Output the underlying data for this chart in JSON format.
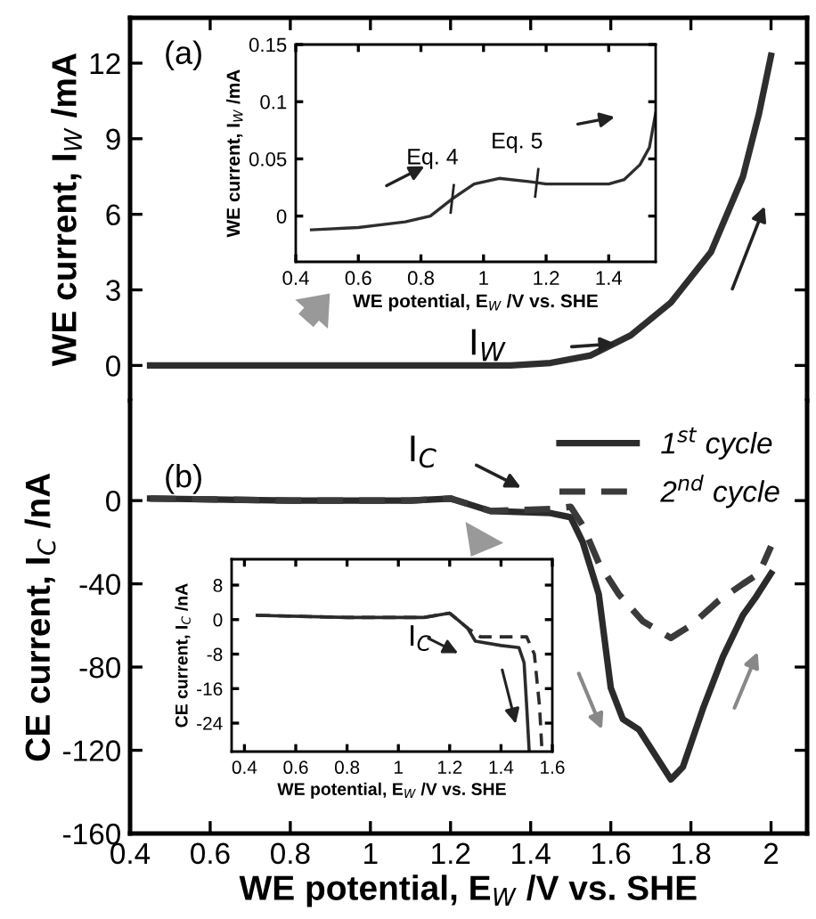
{
  "chart_data": [
    {
      "type": "line",
      "ylabel": "WE current, I$_{W}$ /mA",
      "xlim": [
        0.4,
        2.09
      ],
      "ylim": [
        -1.4,
        13.8
      ],
      "xticks": [
        0.4,
        0.6,
        0.8,
        1,
        1.2,
        1.4,
        1.6,
        1.8,
        2
      ],
      "yticks": [
        0,
        3,
        6,
        9,
        12
      ],
      "tick_labels": "y",
      "legend": false,
      "grid": false,
      "line_style": "solid",
      "marker": "none",
      "annotations": [
        "(a)",
        "I$_{W}$"
      ],
      "series": [
        {
          "color": "#2e2e2e",
          "x": [
            0.45,
            0.8,
            1.2,
            1.35,
            1.45,
            1.55,
            1.65,
            1.75,
            1.85,
            1.93,
            1.97,
            2.0
          ],
          "values": [
            0,
            0,
            0,
            0,
            0.1,
            0.4,
            1.2,
            2.5,
            4.5,
            7.5,
            10,
            12.3
          ]
        }
      ]
    },
    {
      "type": "line",
      "xlabel": "WE potential, E$_{W}$ /V vs. SHE",
      "ylabel": "WE current, I$_{W}$ /mA",
      "xlim": [
        0.4,
        1.55
      ],
      "ylim": [
        -0.04,
        0.15
      ],
      "xticks": [
        0.4,
        0.6,
        0.8,
        1,
        1.2,
        1.4
      ],
      "yticks": [
        0,
        0.05,
        0.1,
        0.15
      ],
      "legend": false,
      "grid": false,
      "line_style": "solid",
      "marker": "none",
      "annotations": [
        {
          "text": "Eq. 4",
          "x": 0.9,
          "y": 0.015
        },
        {
          "text": "Eq. 5",
          "x": 1.17,
          "y": 0.029
        }
      ],
      "series": [
        {
          "color": "#2e2e2e",
          "x": [
            0.45,
            0.6,
            0.75,
            0.83,
            0.9,
            0.97,
            1.05,
            1.15,
            1.2,
            1.4,
            1.45,
            1.5,
            1.53,
            1.55
          ],
          "values": [
            -0.012,
            -0.01,
            -0.005,
            0,
            0.015,
            0.028,
            0.033,
            0.03,
            0.028,
            0.028,
            0.032,
            0.045,
            0.06,
            0.09
          ]
        }
      ]
    },
    {
      "type": "line",
      "xlabel": "WE potential, E$_{W}$ /V vs. SHE",
      "ylabel": "CE current, I$_{C}$ /nA",
      "xlim": [
        0.4,
        2.09
      ],
      "ylim": [
        -160,
        48
      ],
      "xticks": [
        0.4,
        0.6,
        0.8,
        1,
        1.2,
        1.4,
        1.6,
        1.8,
        2
      ],
      "yticks": [
        -160,
        -120,
        -80,
        -40,
        0
      ],
      "legend": "top right",
      "grid": false,
      "marker": "none",
      "annotations": [
        "(b)",
        "I$_{C}$"
      ],
      "series": [
        {
          "name": "1$^{st}$ cycle",
          "color": "#2b2b2b",
          "line_style": "solid",
          "x": [
            0.45,
            0.8,
            1.1,
            1.2,
            1.3,
            1.45,
            1.5,
            1.53,
            1.57,
            1.6,
            1.63,
            1.67,
            1.72,
            1.75,
            1.78,
            1.83,
            1.88,
            1.93,
            1.96,
            2.0
          ],
          "values": [
            1,
            0,
            0,
            1,
            -5,
            -6,
            -8,
            -20,
            -45,
            -90,
            -105,
            -110,
            -125,
            -134,
            -128,
            -100,
            -75,
            -55,
            -47,
            -35
          ]
        },
        {
          "name": "2$^{nd}$ cycle",
          "color": "#3a3a3a",
          "line_style": "dashed",
          "x": [
            0.45,
            0.8,
            1.1,
            1.2,
            1.3,
            1.45,
            1.5,
            1.53,
            1.57,
            1.62,
            1.68,
            1.75,
            1.8,
            1.87,
            1.93,
            1.97,
            2.0
          ],
          "values": [
            1,
            0,
            0,
            1,
            -5,
            -4,
            -3,
            -12,
            -30,
            -45,
            -58,
            -66,
            -60,
            -48,
            -40,
            -35,
            -22
          ]
        }
      ]
    },
    {
      "type": "line",
      "xlabel": "WE potential, E$_{W}$ /V vs. SHE",
      "ylabel": "CE current, I$_{C}$ /nA",
      "xlim": [
        0.35,
        1.6
      ],
      "ylim": [
        -30.6,
        14
      ],
      "xticks": [
        0.4,
        0.6,
        0.8,
        1,
        1.2,
        1.4,
        1.6
      ],
      "yticks": [
        -24,
        -16,
        -8,
        0,
        8
      ],
      "legend": false,
      "grid": false,
      "marker": "none",
      "annotations": [
        "I$_{C}$"
      ],
      "series": [
        {
          "color": "#2b2b2b",
          "line_style": "solid",
          "x": [
            0.45,
            0.8,
            1.1,
            1.2,
            1.27,
            1.3,
            1.4,
            1.47,
            1.49,
            1.5,
            1.51
          ],
          "values": [
            1,
            0.5,
            0.5,
            1.5,
            -2,
            -5,
            -6,
            -6.5,
            -10,
            -20,
            -30.6
          ]
        },
        {
          "color": "#2b2b2b",
          "line_style": "dashed",
          "x": [
            0.45,
            0.8,
            1.1,
            1.2,
            1.27,
            1.32,
            1.5,
            1.53,
            1.55,
            1.56
          ],
          "values": [
            1,
            0.5,
            0.5,
            1.5,
            -2,
            -4,
            -4,
            -8,
            -20,
            -30.6
          ]
        }
      ]
    }
  ]
}
